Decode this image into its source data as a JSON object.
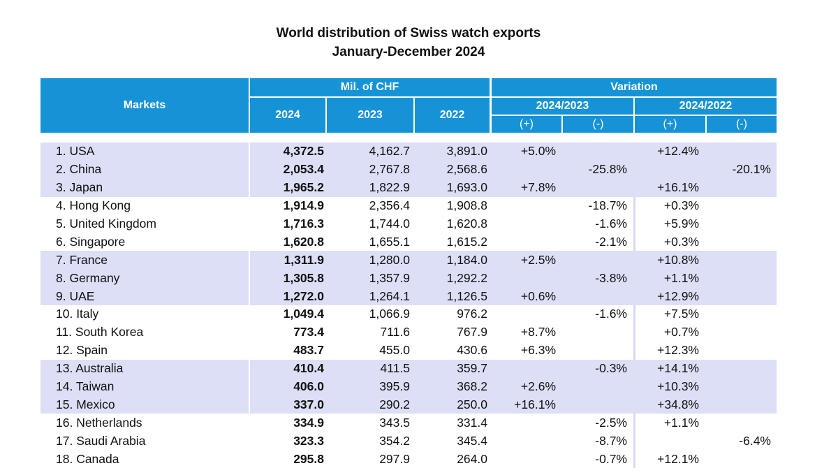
{
  "title": {
    "line1": "World distribution of Swiss watch exports",
    "line2": "January-December 2024"
  },
  "header": {
    "markets": "Markets",
    "mil_chf": "Mil. of CHF",
    "variation": "Variation",
    "years": [
      "2024",
      "2023",
      "2022"
    ],
    "periods": [
      "2024/2023",
      "2024/2022"
    ],
    "plus": "(+)",
    "minus": "(-)"
  },
  "rows": [
    {
      "market": "1. USA",
      "v2024": "4,372.5",
      "v2023": "4,162.7",
      "v2022": "3,891.0",
      "var23_plus": "+5.0%",
      "var23_minus": "",
      "var22_plus": "+12.4%",
      "var22_minus": ""
    },
    {
      "market": "2. China",
      "v2024": "2,053.4",
      "v2023": "2,767.8",
      "v2022": "2,568.6",
      "var23_plus": "",
      "var23_minus": "-25.8%",
      "var22_plus": "",
      "var22_minus": "-20.1%"
    },
    {
      "market": "3. Japan",
      "v2024": "1,965.2",
      "v2023": "1,822.9",
      "v2022": "1,693.0",
      "var23_plus": "+7.8%",
      "var23_minus": "",
      "var22_plus": "+16.1%",
      "var22_minus": ""
    },
    {
      "market": "4. Hong Kong",
      "v2024": "1,914.9",
      "v2023": "2,356.4",
      "v2022": "1,908.8",
      "var23_plus": "",
      "var23_minus": "-18.7%",
      "var22_plus": "+0.3%",
      "var22_minus": ""
    },
    {
      "market": "5. United Kingdom",
      "v2024": "1,716.3",
      "v2023": "1,744.0",
      "v2022": "1,620.8",
      "var23_plus": "",
      "var23_minus": "-1.6%",
      "var22_plus": "+5.9%",
      "var22_minus": ""
    },
    {
      "market": "6. Singapore",
      "v2024": "1,620.8",
      "v2023": "1,655.1",
      "v2022": "1,615.2",
      "var23_plus": "",
      "var23_minus": "-2.1%",
      "var22_plus": "+0.3%",
      "var22_minus": ""
    },
    {
      "market": "7. France",
      "v2024": "1,311.9",
      "v2023": "1,280.0",
      "v2022": "1,184.0",
      "var23_plus": "+2.5%",
      "var23_minus": "",
      "var22_plus": "+10.8%",
      "var22_minus": ""
    },
    {
      "market": "8. Germany",
      "v2024": "1,305.8",
      "v2023": "1,357.9",
      "v2022": "1,292.2",
      "var23_plus": "",
      "var23_minus": "-3.8%",
      "var22_plus": "+1.1%",
      "var22_minus": ""
    },
    {
      "market": "9. UAE",
      "v2024": "1,272.0",
      "v2023": "1,264.1",
      "v2022": "1,126.5",
      "var23_plus": "+0.6%",
      "var23_minus": "",
      "var22_plus": "+12.9%",
      "var22_minus": ""
    },
    {
      "market": "10. Italy",
      "v2024": "1,049.4",
      "v2023": "1,066.9",
      "v2022": "976.2",
      "var23_plus": "",
      "var23_minus": "-1.6%",
      "var22_plus": "+7.5%",
      "var22_minus": ""
    },
    {
      "market": "11. South Korea",
      "v2024": "773.4",
      "v2023": "711.6",
      "v2022": "767.9",
      "var23_plus": "+8.7%",
      "var23_minus": "",
      "var22_plus": "+0.7%",
      "var22_minus": ""
    },
    {
      "market": "12. Spain",
      "v2024": "483.7",
      "v2023": "455.0",
      "v2022": "430.6",
      "var23_plus": "+6.3%",
      "var23_minus": "",
      "var22_plus": "+12.3%",
      "var22_minus": ""
    },
    {
      "market": "13. Australia",
      "v2024": "410.4",
      "v2023": "411.5",
      "v2022": "359.7",
      "var23_plus": "",
      "var23_minus": "-0.3%",
      "var22_plus": "+14.1%",
      "var22_minus": ""
    },
    {
      "market": "14. Taiwan",
      "v2024": "406.0",
      "v2023": "395.9",
      "v2022": "368.2",
      "var23_plus": "+2.6%",
      "var23_minus": "",
      "var22_plus": "+10.3%",
      "var22_minus": ""
    },
    {
      "market": "15. Mexico",
      "v2024": "337.0",
      "v2023": "290.2",
      "v2022": "250.0",
      "var23_plus": "+16.1%",
      "var23_minus": "",
      "var22_plus": "+34.8%",
      "var22_minus": ""
    },
    {
      "market": "16. Netherlands",
      "v2024": "334.9",
      "v2023": "343.5",
      "v2022": "331.4",
      "var23_plus": "",
      "var23_minus": "-2.5%",
      "var22_plus": "+1.1%",
      "var22_minus": ""
    },
    {
      "market": "17. Saudi Arabia",
      "v2024": "323.3",
      "v2023": "354.2",
      "v2022": "345.4",
      "var23_plus": "",
      "var23_minus": "-8.7%",
      "var22_plus": "",
      "var22_minus": "-6.4%"
    },
    {
      "market": "18. Canada",
      "v2024": "295.8",
      "v2023": "297.9",
      "v2022": "264.0",
      "var23_plus": "",
      "var23_minus": "-0.7%",
      "var22_plus": "+12.1%",
      "var22_minus": ""
    }
  ],
  "colors": {
    "header": "#1693d6",
    "band": "#dcdff5"
  }
}
